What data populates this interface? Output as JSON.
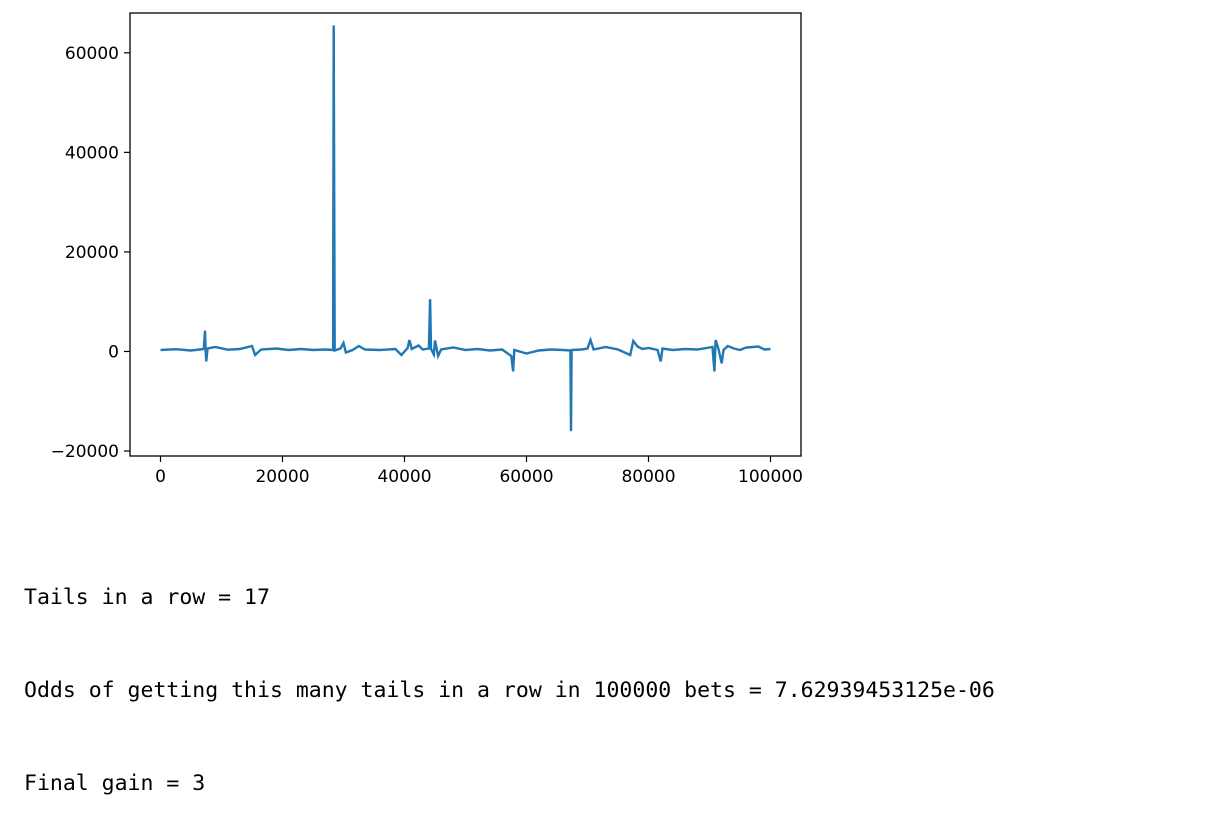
{
  "chart_data": {
    "type": "line",
    "title": "",
    "xlabel": "",
    "ylabel": "",
    "xlim": [
      -5000,
      105000
    ],
    "ylim": [
      -21000,
      68000
    ],
    "xticks": [
      {
        "value": 0,
        "label": "0"
      },
      {
        "value": 20000,
        "label": "20000"
      },
      {
        "value": 40000,
        "label": "40000"
      },
      {
        "value": 60000,
        "label": "60000"
      },
      {
        "value": 80000,
        "label": "80000"
      },
      {
        "value": 100000,
        "label": "100000"
      }
    ],
    "yticks": [
      {
        "value": -20000,
        "label": "−20000"
      },
      {
        "value": 0,
        "label": "0"
      },
      {
        "value": 20000,
        "label": "20000"
      },
      {
        "value": 40000,
        "label": "40000"
      },
      {
        "value": 60000,
        "label": "60000"
      }
    ],
    "grid": false,
    "line_color": "#1f77b4",
    "series": [
      {
        "values": [
          [
            0,
            300
          ],
          [
            2500,
            450
          ],
          [
            5000,
            200
          ],
          [
            7100,
            500
          ],
          [
            7300,
            4200
          ],
          [
            7400,
            300
          ],
          [
            7500,
            -2000
          ],
          [
            7700,
            600
          ],
          [
            9000,
            900
          ],
          [
            11000,
            350
          ],
          [
            13000,
            500
          ],
          [
            15000,
            1100
          ],
          [
            15500,
            -700
          ],
          [
            16500,
            400
          ],
          [
            19000,
            600
          ],
          [
            21000,
            300
          ],
          [
            23000,
            500
          ],
          [
            25000,
            300
          ],
          [
            27000,
            400
          ],
          [
            28300,
            300
          ],
          [
            28400,
            65500
          ],
          [
            28550,
            200
          ],
          [
            29500,
            600
          ],
          [
            30000,
            1700
          ],
          [
            30400,
            -200
          ],
          [
            31500,
            300
          ],
          [
            32500,
            1100
          ],
          [
            33500,
            400
          ],
          [
            36000,
            300
          ],
          [
            38500,
            500
          ],
          [
            39500,
            -700
          ],
          [
            40500,
            700
          ],
          [
            40800,
            2300
          ],
          [
            41200,
            500
          ],
          [
            42300,
            1200
          ],
          [
            43000,
            400
          ],
          [
            44000,
            600
          ],
          [
            44200,
            10500
          ],
          [
            44350,
            500
          ],
          [
            44800,
            -600
          ],
          [
            45000,
            2200
          ],
          [
            45500,
            -900
          ],
          [
            46000,
            400
          ],
          [
            48000,
            800
          ],
          [
            50000,
            300
          ],
          [
            52000,
            500
          ],
          [
            54000,
            200
          ],
          [
            56000,
            400
          ],
          [
            57500,
            -900
          ],
          [
            57800,
            -4000
          ],
          [
            58000,
            300
          ],
          [
            60000,
            -400
          ],
          [
            62000,
            200
          ],
          [
            64000,
            400
          ],
          [
            66000,
            300
          ],
          [
            67200,
            200
          ],
          [
            67300,
            -16000
          ],
          [
            67400,
            300
          ],
          [
            69000,
            400
          ],
          [
            70000,
            600
          ],
          [
            70500,
            2300
          ],
          [
            71000,
            400
          ],
          [
            73000,
            900
          ],
          [
            75000,
            400
          ],
          [
            77000,
            -700
          ],
          [
            77500,
            2100
          ],
          [
            78200,
            1000
          ],
          [
            79000,
            500
          ],
          [
            80000,
            700
          ],
          [
            81500,
            300
          ],
          [
            82000,
            -2000
          ],
          [
            82300,
            600
          ],
          [
            84000,
            300
          ],
          [
            86000,
            500
          ],
          [
            88000,
            400
          ],
          [
            90500,
            900
          ],
          [
            90800,
            -4000
          ],
          [
            91000,
            2300
          ],
          [
            91500,
            400
          ],
          [
            92000,
            -2400
          ],
          [
            92300,
            300
          ],
          [
            93000,
            1100
          ],
          [
            94000,
            600
          ],
          [
            95000,
            300
          ],
          [
            96000,
            800
          ],
          [
            98000,
            1000
          ],
          [
            99000,
            400
          ],
          [
            100000,
            500
          ]
        ]
      }
    ]
  },
  "output": {
    "tails_line": "Tails in a row = 17",
    "odds_line": "Odds of getting this many tails in a row in 100000 bets = 7.62939453125e-06",
    "gain_line": "Final gain = 3"
  }
}
